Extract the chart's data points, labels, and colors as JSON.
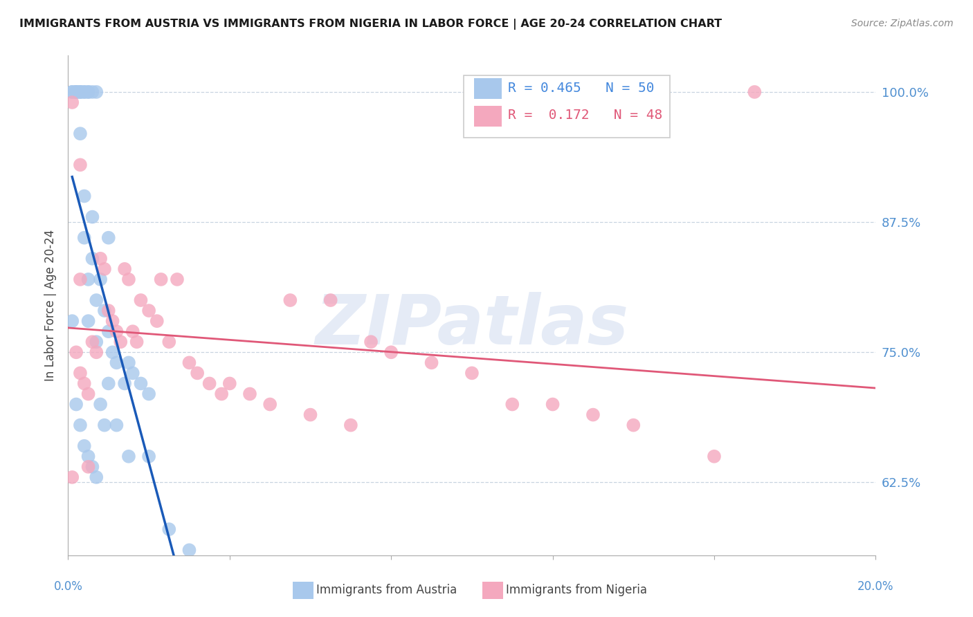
{
  "title": "IMMIGRANTS FROM AUSTRIA VS IMMIGRANTS FROM NIGERIA IN LABOR FORCE | AGE 20-24 CORRELATION CHART",
  "source": "Source: ZipAtlas.com",
  "ylabel": "In Labor Force | Age 20-24",
  "yticks": [
    0.625,
    0.75,
    0.875,
    1.0
  ],
  "ytick_labels": [
    "62.5%",
    "75.0%",
    "87.5%",
    "100.0%"
  ],
  "xlim": [
    0.0,
    0.2
  ],
  "ylim": [
    0.555,
    1.035
  ],
  "austria_color": "#a8c8ec",
  "nigeria_color": "#f4a8be",
  "austria_line_color": "#1a5ab8",
  "nigeria_line_color": "#e05878",
  "austria_r": "0.465",
  "austria_n": "50",
  "nigeria_r": "0.172",
  "nigeria_n": "48",
  "watermark_text": "ZIPatlas",
  "austria_x": [
    0.001,
    0.001,
    0.001,
    0.002,
    0.002,
    0.002,
    0.002,
    0.003,
    0.003,
    0.003,
    0.003,
    0.004,
    0.004,
    0.004,
    0.004,
    0.005,
    0.005,
    0.005,
    0.005,
    0.006,
    0.006,
    0.006,
    0.007,
    0.007,
    0.007,
    0.008,
    0.009,
    0.01,
    0.01,
    0.011,
    0.012,
    0.014,
    0.015,
    0.016,
    0.018,
    0.02,
    0.002,
    0.003,
    0.004,
    0.005,
    0.006,
    0.007,
    0.008,
    0.009,
    0.01,
    0.012,
    0.015,
    0.02,
    0.025,
    0.03
  ],
  "austria_y": [
    1.0,
    1.0,
    0.78,
    1.0,
    1.0,
    1.0,
    1.0,
    1.0,
    1.0,
    1.0,
    0.96,
    1.0,
    1.0,
    0.9,
    0.86,
    1.0,
    1.0,
    0.82,
    0.78,
    1.0,
    0.88,
    0.84,
    1.0,
    0.8,
    0.76,
    0.82,
    0.79,
    0.86,
    0.77,
    0.75,
    0.74,
    0.72,
    0.74,
    0.73,
    0.72,
    0.71,
    0.7,
    0.68,
    0.66,
    0.65,
    0.64,
    0.63,
    0.7,
    0.68,
    0.72,
    0.68,
    0.65,
    0.65,
    0.58,
    0.56
  ],
  "nigeria_x": [
    0.001,
    0.002,
    0.003,
    0.003,
    0.004,
    0.005,
    0.006,
    0.007,
    0.008,
    0.009,
    0.01,
    0.011,
    0.012,
    0.013,
    0.014,
    0.015,
    0.016,
    0.017,
    0.018,
    0.02,
    0.022,
    0.023,
    0.025,
    0.027,
    0.03,
    0.032,
    0.035,
    0.038,
    0.04,
    0.045,
    0.05,
    0.055,
    0.06,
    0.065,
    0.07,
    0.075,
    0.08,
    0.09,
    0.1,
    0.11,
    0.12,
    0.13,
    0.14,
    0.16,
    0.17,
    0.003,
    0.005,
    0.001
  ],
  "nigeria_y": [
    0.99,
    0.75,
    0.73,
    0.82,
    0.72,
    0.71,
    0.76,
    0.75,
    0.84,
    0.83,
    0.79,
    0.78,
    0.77,
    0.76,
    0.83,
    0.82,
    0.77,
    0.76,
    0.8,
    0.79,
    0.78,
    0.82,
    0.76,
    0.82,
    0.74,
    0.73,
    0.72,
    0.71,
    0.72,
    0.71,
    0.7,
    0.8,
    0.69,
    0.8,
    0.68,
    0.76,
    0.75,
    0.74,
    0.73,
    0.7,
    0.7,
    0.69,
    0.68,
    0.65,
    1.0,
    0.93,
    0.64,
    0.63
  ]
}
